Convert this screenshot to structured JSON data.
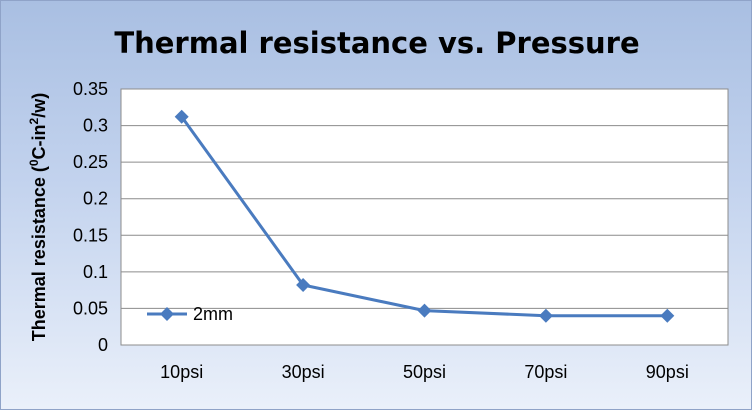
{
  "chart_data": {
    "type": "line",
    "title": "Thermal resistance vs. Pressure",
    "ylabel": {
      "prefix": "Thermal resistance  (",
      "sup1": "0",
      "middle": "C-in",
      "sup2": "2",
      "suffix": "/w)"
    },
    "xlabel": "",
    "categories": [
      "10psi",
      "30psi",
      "50psi",
      "70psi",
      "90psi"
    ],
    "ylim": [
      0,
      0.35
    ],
    "yticks": [
      "0",
      "0.05",
      "0.1",
      "0.15",
      "0.2",
      "0.25",
      "0.3",
      "0.35"
    ],
    "grid": true,
    "legend_position": "inside-bottom-left",
    "series": [
      {
        "name": "2mm",
        "values": [
          0.312,
          0.082,
          0.047,
          0.04,
          0.04
        ],
        "color": "#4a7bbf",
        "marker": "diamond"
      }
    ]
  }
}
